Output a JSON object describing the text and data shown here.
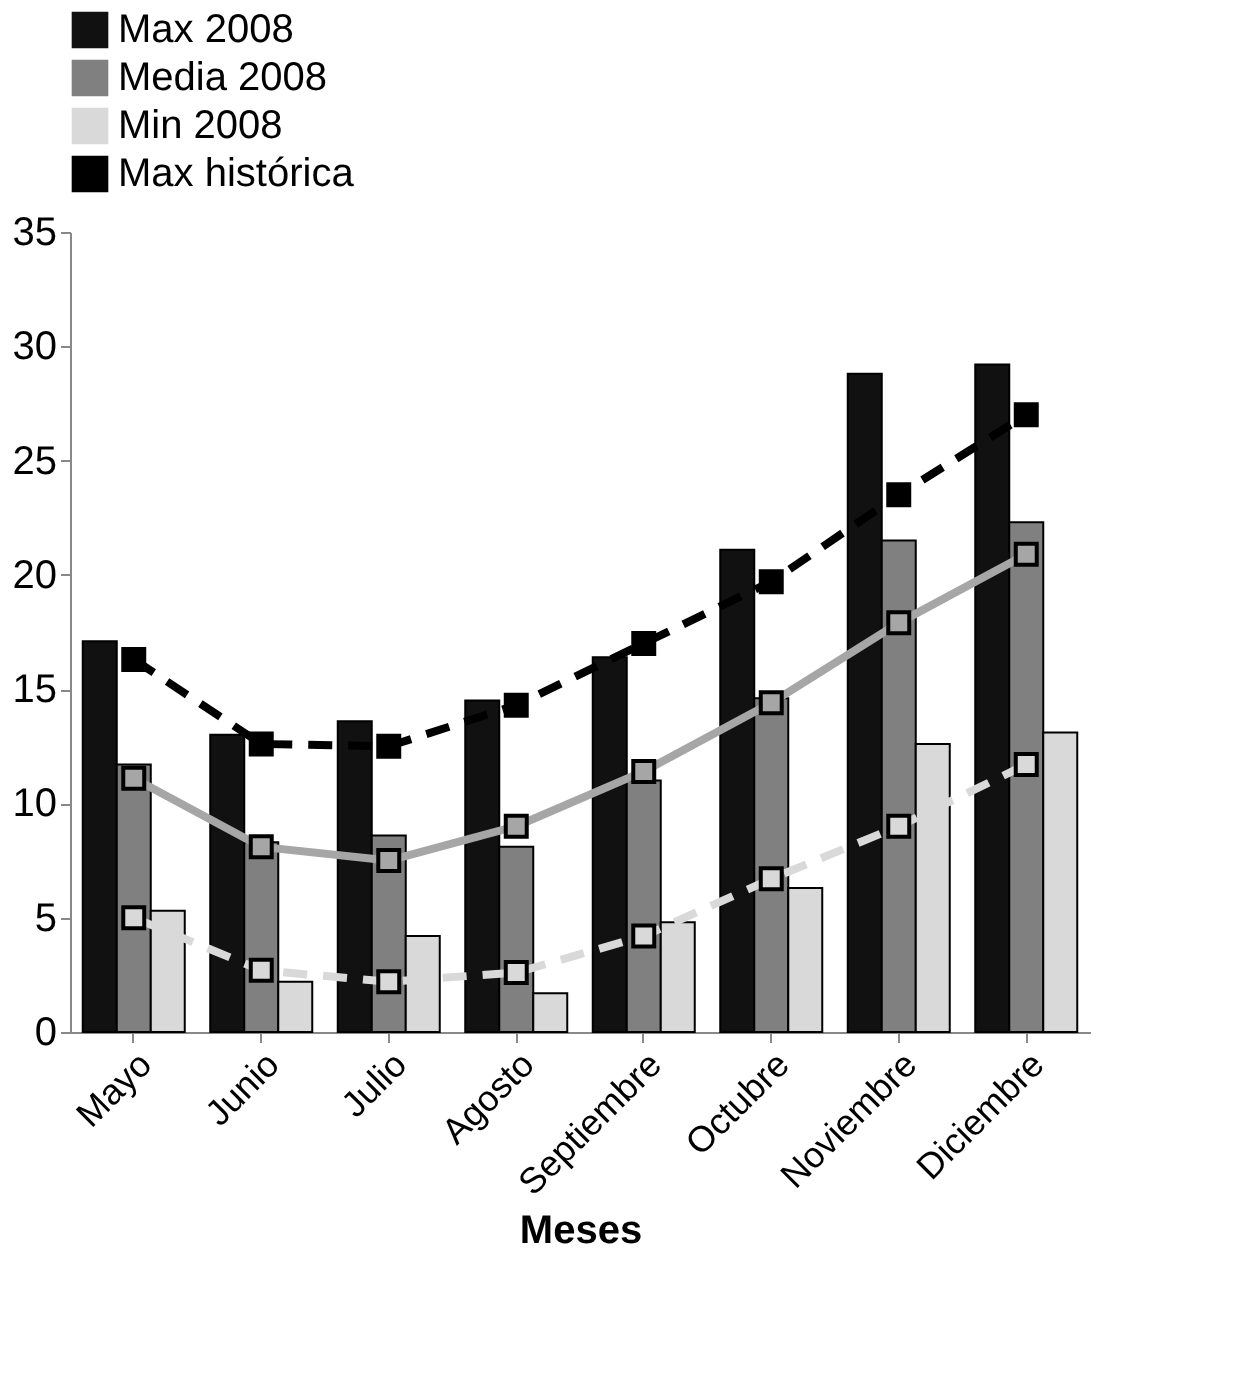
{
  "chart_data": {
    "type": "bar",
    "xlabel": "Meses",
    "categories": [
      "Mayo",
      "Junio",
      "Julio",
      "Agosto",
      "Septiembre",
      "Octubre",
      "Noviembre",
      "Diciembre"
    ],
    "series": [
      {
        "name": "Max 2008",
        "color": "#111111",
        "values": [
          17.1,
          13.0,
          13.6,
          14.5,
          16.4,
          21.1,
          28.8,
          29.2
        ]
      },
      {
        "name": "Media 2008",
        "color": "#808080",
        "values": [
          11.7,
          8.3,
          8.6,
          8.1,
          11.0,
          14.6,
          21.5,
          22.3
        ]
      },
      {
        "name": "Min 2008",
        "color": "#d9d9d9",
        "values": [
          5.3,
          2.2,
          4.2,
          1.7,
          4.8,
          6.3,
          12.6,
          13.1
        ]
      },
      {
        "name": "Max histórica",
        "type": "line",
        "color": "#000000",
        "line_style": "dashed",
        "marker": "square",
        "values": [
          16.3,
          12.6,
          12.5,
          14.3,
          17.0,
          19.7,
          23.5,
          27.0
        ]
      },
      {
        "type": "line",
        "color": "#a6a6a6",
        "line_style": "solid",
        "marker": "square",
        "values": [
          11.1,
          8.1,
          7.5,
          9.0,
          11.4,
          14.4,
          17.9,
          20.9
        ]
      },
      {
        "type": "line",
        "color": "#d9d9d9",
        "line_style": "dashed",
        "marker": "square",
        "values": [
          5.0,
          2.7,
          2.2,
          2.6,
          4.2,
          6.7,
          9.0,
          11.7
        ]
      }
    ],
    "ylim": [
      0,
      35
    ],
    "yticks": [
      0,
      5,
      10,
      15,
      20,
      25,
      30,
      35
    ],
    "grid": false,
    "legend": "top"
  }
}
